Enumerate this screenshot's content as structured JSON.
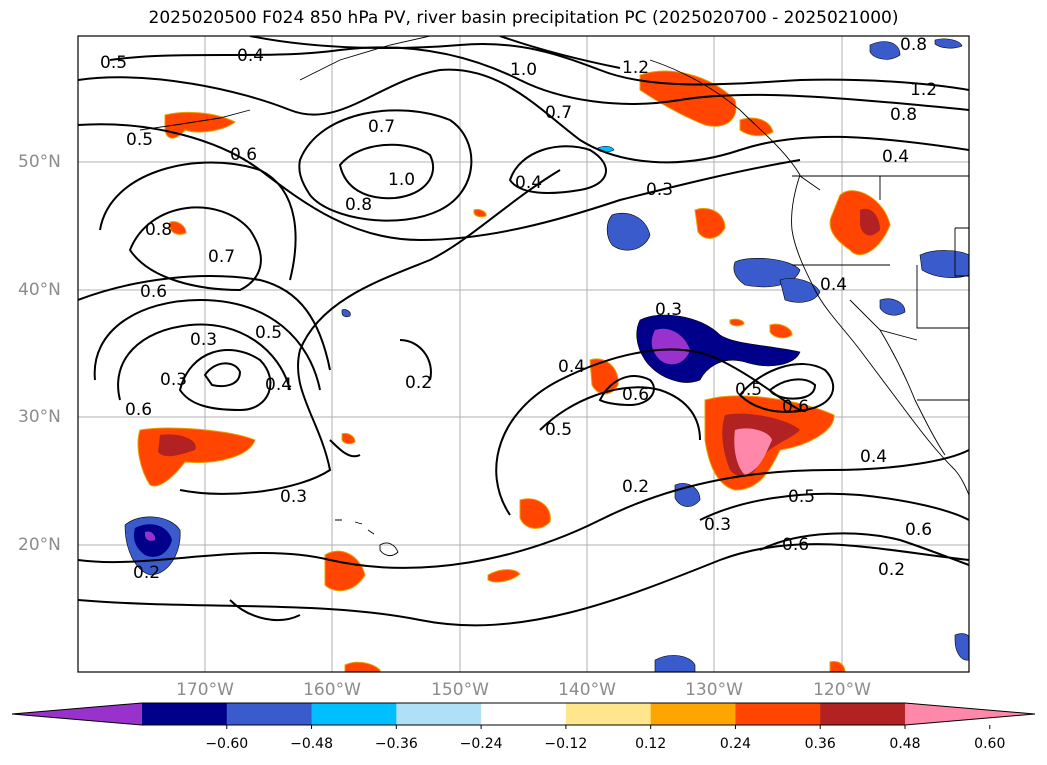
{
  "title": "2025020500 F024 850 hPa PV, river basin precipitation PC (2025020700 - 2025021000)",
  "lat_labels": [
    "50°N",
    "40°N",
    "30°N",
    "20°N"
  ],
  "lon_labels": [
    "170°W",
    "160°W",
    "150°W",
    "140°W",
    "130°W",
    "120°W"
  ],
  "colorbar": {
    "colors": [
      "#9932cc",
      "#00008b",
      "#3a5bcb",
      "#00bfff",
      "#b0e0f8",
      "#ffffff",
      "#ffe68c",
      "#ffa500",
      "#ff4500",
      "#b22222",
      "#ff88aa"
    ],
    "tick_labels": [
      "−0.60",
      "−0.48",
      "−0.36",
      "−0.24",
      "−0.12",
      "0.12",
      "0.24",
      "0.36",
      "0.48",
      "0.60"
    ],
    "extend": "both"
  },
  "contour_labels": [
    "0.5",
    "0.4",
    "1.0",
    "1.2",
    "0.7",
    "0.5",
    "0.6",
    "0.7",
    "0.4",
    "0.8",
    "1.0",
    "0.8",
    "0.4",
    "0.3",
    "0.8",
    "0.8",
    "1.2",
    "0.4",
    "0.7",
    "0.6",
    "0.3",
    "0.5",
    "0.4",
    "0.3",
    "0.6",
    "0.2",
    "0.4",
    "0.6",
    "0.5",
    "0.3",
    "0.5",
    "0.6",
    "0.2",
    "0.3",
    "0.2",
    "0.3",
    "0.5",
    "0.6",
    "0.6",
    "0.2",
    "0.4"
  ]
}
